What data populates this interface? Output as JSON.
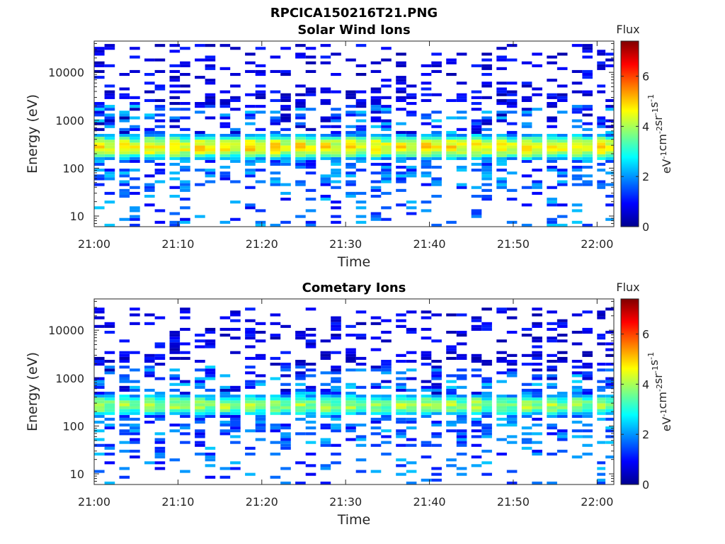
{
  "figure": {
    "title": "RPCICA150216T21.PNG"
  },
  "colorbar": {
    "label": "Flux",
    "unit_parts": [
      "eV",
      "-1",
      "cm",
      "-2",
      "sr",
      "-1",
      "s",
      "-1"
    ],
    "ticks": [
      "0",
      "2",
      "4",
      "6"
    ],
    "range": [
      0,
      7.4
    ],
    "colormap": "jet"
  },
  "axes_common": {
    "xlabel": "Time",
    "ylabel": "Energy (eV)",
    "xticks": [
      "21:00",
      "21:10",
      "21:20",
      "21:30",
      "21:40",
      "21:50",
      "22:00"
    ],
    "yticks": [
      "10",
      "100",
      "1000",
      "10000"
    ],
    "xlim": [
      "21:00",
      "22:02"
    ],
    "ylim": [
      6,
      45000
    ],
    "yscale": "log"
  },
  "chart_data": [
    {
      "type": "heatmap",
      "title": "Solar Wind Ions",
      "xlabel": "Time",
      "ylabel": "Energy (eV)",
      "scan_times": [
        "21:00",
        "21:03",
        "21:06",
        "21:09",
        "21:12",
        "21:15",
        "21:18",
        "21:21",
        "21:24",
        "21:27",
        "21:30",
        "21:33",
        "21:36",
        "21:39",
        "21:42",
        "21:45",
        "21:48",
        "21:51",
        "21:54",
        "21:57",
        "22:00"
      ],
      "core_energy_range_eV": [
        150,
        500
      ],
      "core_flux_peak": 5.2,
      "high_energy_sparse_max_eV": 38000,
      "low_energy_sparse_min_eV": 6
    },
    {
      "type": "heatmap",
      "title": "Cometary Ions",
      "xlabel": "Time",
      "ylabel": "Energy (eV)",
      "scan_times": [
        "21:00",
        "21:03",
        "21:06",
        "21:09",
        "21:12",
        "21:15",
        "21:18",
        "21:21",
        "21:24",
        "21:27",
        "21:30",
        "21:33",
        "21:36",
        "21:39",
        "21:42",
        "21:45",
        "21:48",
        "21:51",
        "21:54",
        "21:57",
        "22:00"
      ],
      "core_energy_range_eV": [
        160,
        460
      ],
      "core_flux_peak": 4.4,
      "high_energy_sparse_max_eV": 28000,
      "low_energy_sparse_min_eV": 6
    }
  ]
}
